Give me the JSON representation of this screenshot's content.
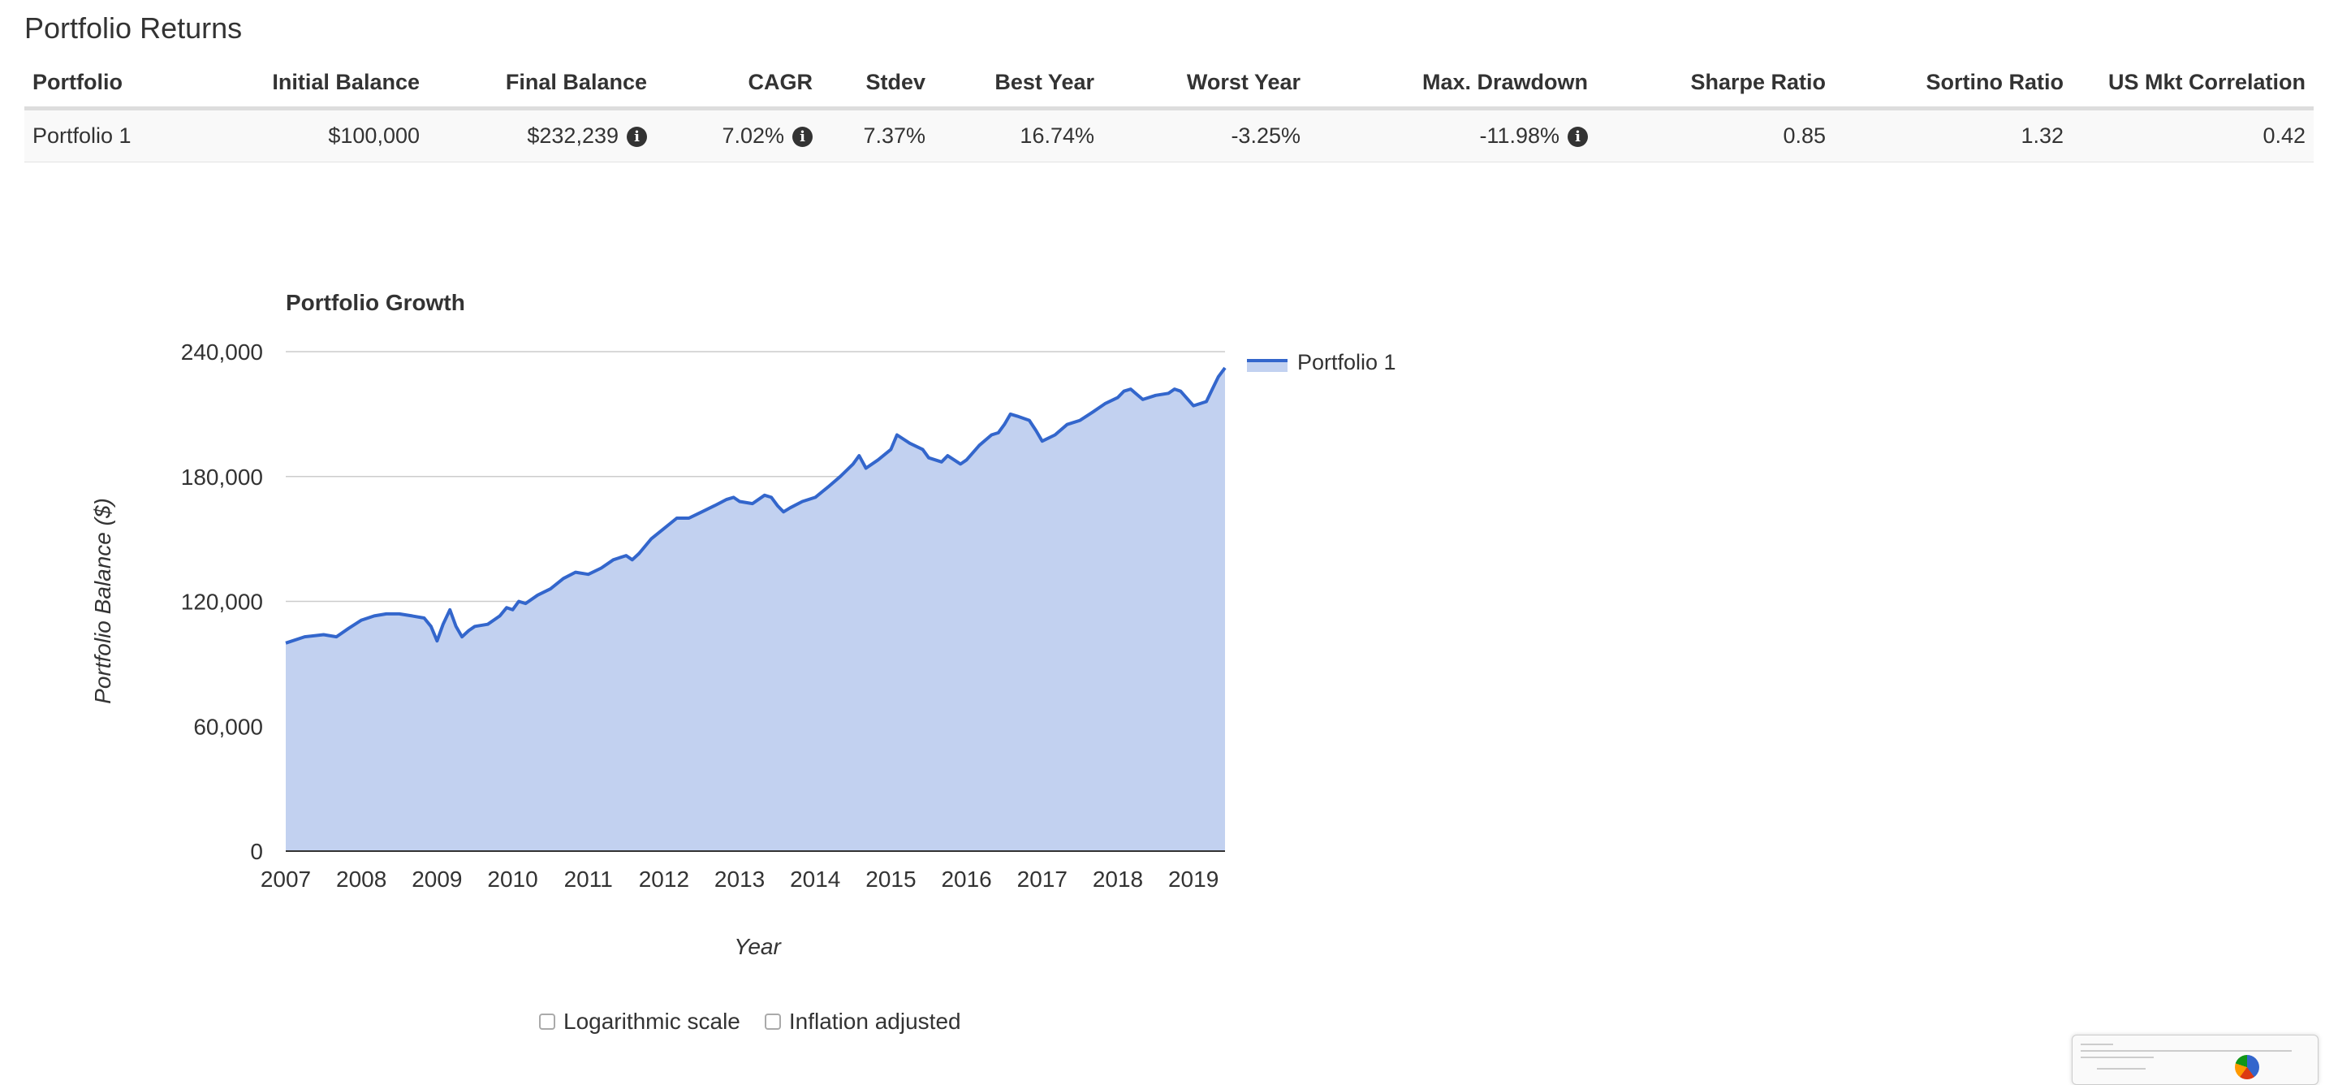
{
  "page_title": "Portfolio Returns",
  "table": {
    "headers": [
      "Portfolio",
      "Initial Balance",
      "Final Balance",
      "CAGR",
      "Stdev",
      "Best Year",
      "Worst Year",
      "Max. Drawdown",
      "Sharpe Ratio",
      "Sortino Ratio",
      "US Mkt Correlation"
    ],
    "rows": [
      {
        "portfolio": "Portfolio 1",
        "initial_balance": "$100,000",
        "final_balance": "$232,239",
        "cagr": "7.02%",
        "stdev": "7.37%",
        "best_year": "16.74%",
        "worst_year": "-3.25%",
        "max_drawdown": "-11.98%",
        "sharpe_ratio": "0.85",
        "sortino_ratio": "1.32",
        "us_mkt_correlation": "0.42"
      }
    ],
    "info_icon": "info-circle-icon"
  },
  "chart_data": {
    "type": "area",
    "title": "Portfolio Growth",
    "xlabel": "Year",
    "ylabel": "Portfolio Balance ($)",
    "xlim": [
      2007,
      2019.417
    ],
    "ylim": [
      0,
      240000
    ],
    "y_ticks": [
      "0",
      "60,000",
      "120,000",
      "180,000",
      "240,000"
    ],
    "x_ticks": [
      "2007",
      "2008",
      "2009",
      "2010",
      "2011",
      "2012",
      "2013",
      "2014",
      "2015",
      "2016",
      "2017",
      "2018",
      "2019"
    ],
    "grid": true,
    "legend": "top-right",
    "line_color": "#3366cc",
    "fill_color": "#c2d1f0",
    "series": [
      {
        "name": "Portfolio 1",
        "x": [
          2007.0,
          2007.25,
          2007.5,
          2007.67,
          2007.83,
          2008.0,
          2008.17,
          2008.33,
          2008.5,
          2008.67,
          2008.83,
          2008.92,
          2009.0,
          2009.08,
          2009.17,
          2009.25,
          2009.33,
          2009.42,
          2009.5,
          2009.67,
          2009.83,
          2009.92,
          2010.0,
          2010.08,
          2010.17,
          2010.33,
          2010.5,
          2010.67,
          2010.83,
          2011.0,
          2011.17,
          2011.33,
          2011.5,
          2011.58,
          2011.67,
          2011.83,
          2012.0,
          2012.17,
          2012.33,
          2012.5,
          2012.67,
          2012.83,
          2012.92,
          2013.0,
          2013.17,
          2013.33,
          2013.42,
          2013.5,
          2013.58,
          2013.67,
          2013.83,
          2014.0,
          2014.17,
          2014.33,
          2014.5,
          2014.58,
          2014.67,
          2014.83,
          2015.0,
          2015.08,
          2015.25,
          2015.42,
          2015.5,
          2015.67,
          2015.75,
          2015.92,
          2016.0,
          2016.17,
          2016.33,
          2016.42,
          2016.5,
          2016.58,
          2016.67,
          2016.83,
          2016.92,
          2017.0,
          2017.17,
          2017.33,
          2017.5,
          2017.67,
          2017.83,
          2018.0,
          2018.08,
          2018.17,
          2018.33,
          2018.5,
          2018.67,
          2018.75,
          2018.83,
          2019.0,
          2019.17,
          2019.25,
          2019.33,
          2019.417
        ],
        "values": [
          100000,
          103000,
          104000,
          103000,
          107000,
          111000,
          113000,
          114000,
          114000,
          113000,
          112000,
          108000,
          101000,
          109000,
          116000,
          108000,
          103000,
          106000,
          108000,
          109000,
          113000,
          117000,
          116000,
          120000,
          119000,
          123000,
          126000,
          131000,
          134000,
          133000,
          136000,
          140000,
          142000,
          140000,
          143000,
          150000,
          155000,
          160000,
          160000,
          163000,
          166000,
          169000,
          170000,
          168000,
          167000,
          171000,
          170000,
          166000,
          163000,
          165000,
          168000,
          170000,
          175000,
          180000,
          186000,
          190000,
          184000,
          188000,
          193000,
          200000,
          196000,
          193000,
          189000,
          187000,
          190000,
          186000,
          188000,
          195000,
          200000,
          201000,
          205000,
          210000,
          209000,
          207000,
          202000,
          197000,
          200000,
          205000,
          207000,
          211000,
          215000,
          218000,
          221000,
          222000,
          217000,
          219000,
          220000,
          222000,
          221000,
          214000,
          216000,
          222000,
          228000,
          232239
        ]
      }
    ]
  },
  "options": {
    "log_scale_label": "Logarithmic scale",
    "inflation_label": "Inflation adjusted",
    "log_scale_checked": false,
    "inflation_checked": false
  }
}
